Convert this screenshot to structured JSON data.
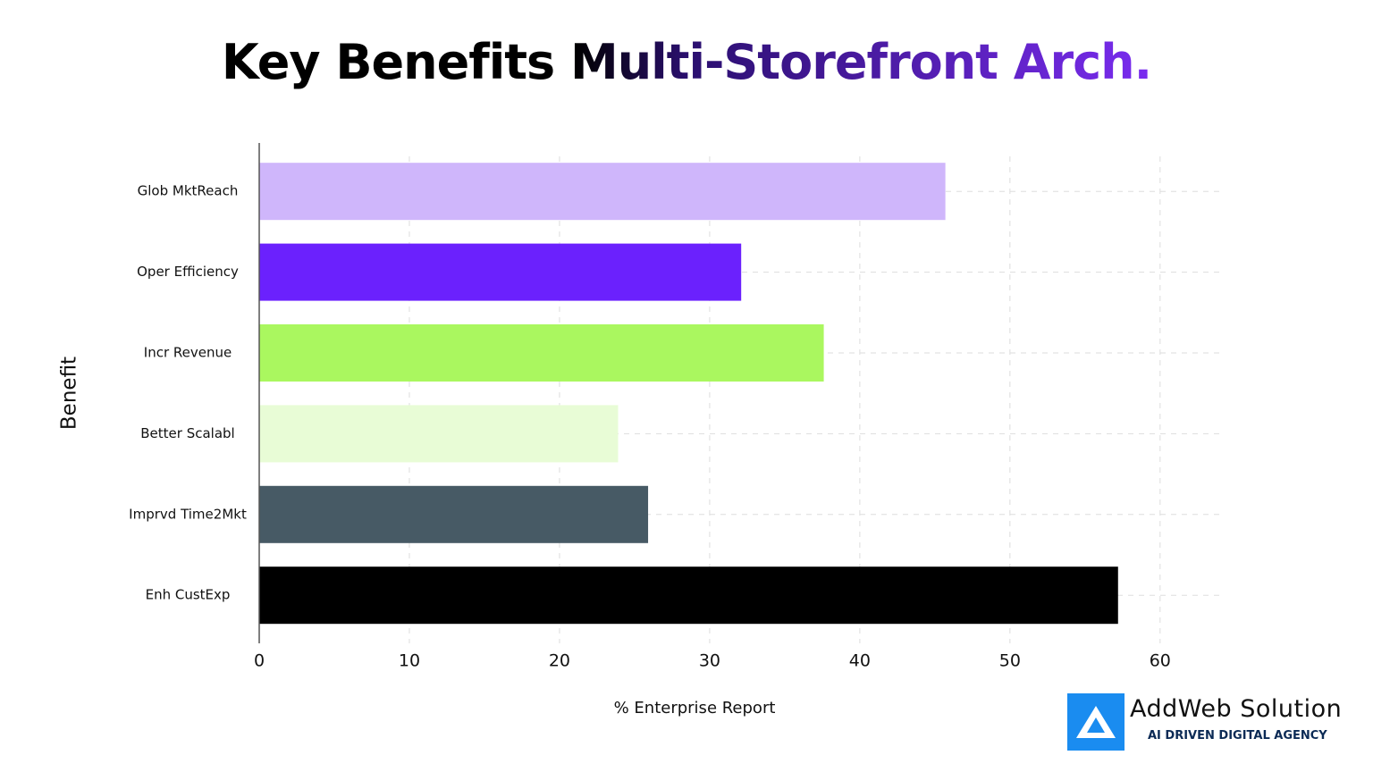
{
  "chart_data": {
    "type": "hbar",
    "title": "Key Benefits Multi-Storefront Arch.",
    "xlabel": "% Enterprise Report",
    "ylabel": "Benefit",
    "categories": [
      "Glob MktReach",
      "Oper Efficiency",
      "Incr Revenue",
      "Better Scalabl",
      "Imprvd Time2Mkt",
      "Enh CustExp"
    ],
    "values": [
      45.7,
      32.1,
      37.6,
      23.9,
      25.9,
      57.2
    ],
    "colors": [
      "#cfb6fb",
      "#6b21fd",
      "#aaf75f",
      "#e8fcd6",
      "#475a65",
      "#000000"
    ],
    "xlim": [
      0,
      64
    ],
    "xticks": [
      0,
      10,
      20,
      30,
      40,
      50,
      60
    ],
    "grid": true
  },
  "brand": {
    "name": "AddWeb Solution",
    "tagline": "AI DRIVEN DIGITAL AGENCY"
  }
}
